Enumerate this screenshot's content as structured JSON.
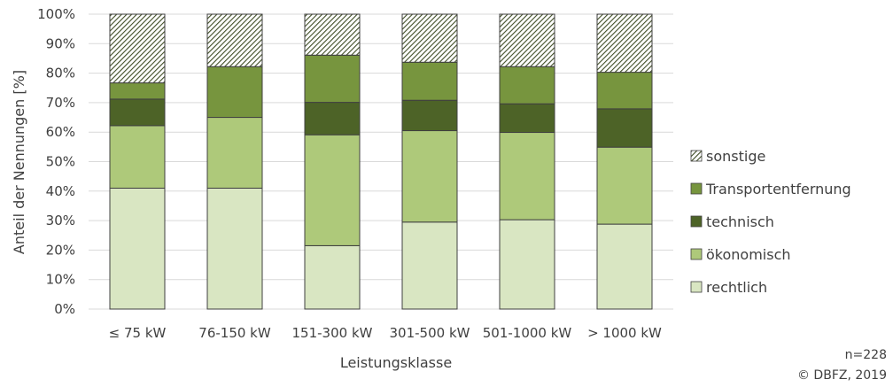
{
  "chart_data": {
    "type": "bar",
    "stacked": true,
    "categories": [
      "≤ 75 kW",
      "76-150 kW",
      "151-300 kW",
      "301-500 kW",
      "501-1000 kW",
      "> 1000 kW"
    ],
    "xlabel": "Leistungsklasse",
    "ylabel": "Anteil der Nennungen [%]",
    "ylim": [
      0,
      100
    ],
    "yticks": [
      0,
      10,
      20,
      30,
      40,
      50,
      60,
      70,
      80,
      90,
      100
    ],
    "ytick_suffix": "%",
    "grid": true,
    "legend_position": "right",
    "series": [
      {
        "name": "rechtlich",
        "values": [
          41,
          41,
          21.5,
          29.5,
          30.3,
          28.8
        ],
        "color": "#d9e6c2",
        "pattern": "solid"
      },
      {
        "name": "ökonomisch",
        "values": [
          21.2,
          24,
          37.6,
          31,
          29.6,
          26.1
        ],
        "color": "#aec97a",
        "pattern": "solid"
      },
      {
        "name": "technisch",
        "values": [
          9,
          0,
          11,
          10.3,
          9.7,
          13
        ],
        "color": "#4d6327",
        "pattern": "solid"
      },
      {
        "name": "Transportentfernung",
        "values": [
          5.5,
          17.2,
          16,
          12.9,
          12.6,
          12.4
        ],
        "color": "#77953e",
        "pattern": "solid"
      },
      {
        "name": "sonstige",
        "values": [
          23.3,
          17.8,
          13.9,
          16.3,
          17.8,
          19.7
        ],
        "color": "#4d6327",
        "pattern": "hatch"
      }
    ]
  },
  "notes": {
    "sample": "n=228",
    "source": "© DBFZ, 2019"
  }
}
